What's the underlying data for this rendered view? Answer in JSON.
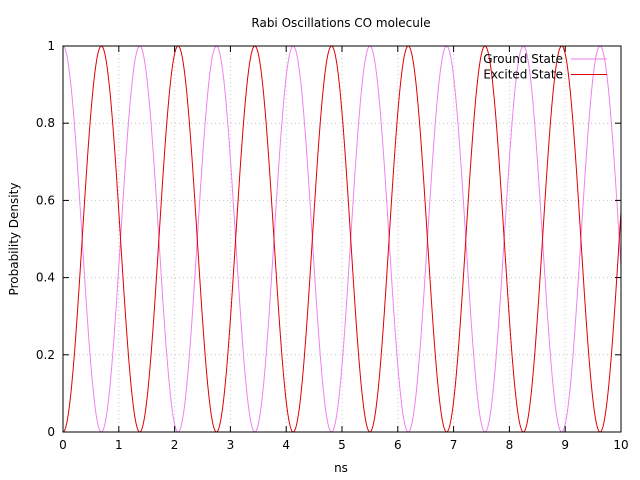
{
  "chart_data": {
    "type": "line",
    "title": "Rabi Oscillations CO molecule",
    "xlabel": "ns",
    "ylabel": "Probability Density",
    "xlim": [
      0,
      10
    ],
    "ylim": [
      0,
      1
    ],
    "x_ticks": [
      "0",
      "1",
      "2",
      "3",
      "4",
      "5",
      "6",
      "7",
      "8",
      "9",
      "10"
    ],
    "y_ticks": [
      "0",
      "0.2",
      "0.4",
      "0.6",
      "0.8",
      "1"
    ],
    "grid": true,
    "legend_position": "top-right",
    "rabi_period_ns": 1.375,
    "series": [
      {
        "name": "Ground State",
        "function": "cos^2(pi*t/T)",
        "color": "#ee82ee"
      },
      {
        "name": "Excited State",
        "function": "sin^2(pi*t/T)",
        "color": "#e00000"
      }
    ]
  }
}
